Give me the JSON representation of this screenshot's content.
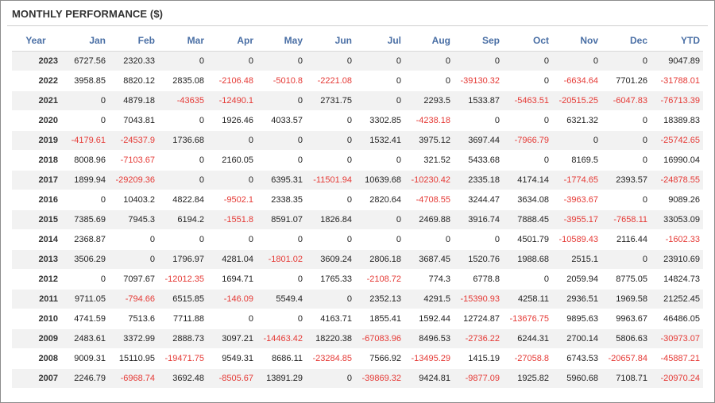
{
  "title": "MONTHLY PERFORMANCE ($)",
  "colors": {
    "header_text": "#4a6fa5",
    "negative": "#e53935",
    "row_alt": "#f2f2f2"
  },
  "table": {
    "headers": [
      "Year",
      "Jan",
      "Feb",
      "Mar",
      "Apr",
      "May",
      "Jun",
      "Jul",
      "Aug",
      "Sep",
      "Oct",
      "Nov",
      "Dec",
      "YTD"
    ],
    "rows": [
      [
        "2023",
        "6727.56",
        "2320.33",
        "0",
        "0",
        "0",
        "0",
        "0",
        "0",
        "0",
        "0",
        "0",
        "0",
        "9047.89"
      ],
      [
        "2022",
        "3958.85",
        "8820.12",
        "2835.08",
        "-2106.48",
        "-5010.8",
        "-2221.08",
        "0",
        "0",
        "-39130.32",
        "0",
        "-6634.64",
        "7701.26",
        "-31788.01"
      ],
      [
        "2021",
        "0",
        "4879.18",
        "-43635",
        "-12490.1",
        "0",
        "2731.75",
        "0",
        "2293.5",
        "1533.87",
        "-5463.51",
        "-20515.25",
        "-6047.83",
        "-76713.39"
      ],
      [
        "2020",
        "0",
        "7043.81",
        "0",
        "1926.46",
        "4033.57",
        "0",
        "3302.85",
        "-4238.18",
        "0",
        "0",
        "6321.32",
        "0",
        "18389.83"
      ],
      [
        "2019",
        "-4179.61",
        "-24537.9",
        "1736.68",
        "0",
        "0",
        "0",
        "1532.41",
        "3975.12",
        "3697.44",
        "-7966.79",
        "0",
        "0",
        "-25742.65"
      ],
      [
        "2018",
        "8008.96",
        "-7103.67",
        "0",
        "2160.05",
        "0",
        "0",
        "0",
        "321.52",
        "5433.68",
        "0",
        "8169.5",
        "0",
        "16990.04"
      ],
      [
        "2017",
        "1899.94",
        "-29209.36",
        "0",
        "0",
        "6395.31",
        "-11501.94",
        "10639.68",
        "-10230.42",
        "2335.18",
        "4174.14",
        "-1774.65",
        "2393.57",
        "-24878.55"
      ],
      [
        "2016",
        "0",
        "10403.2",
        "4822.84",
        "-9502.1",
        "2338.35",
        "0",
        "2820.64",
        "-4708.55",
        "3244.47",
        "3634.08",
        "-3963.67",
        "0",
        "9089.26"
      ],
      [
        "2015",
        "7385.69",
        "7945.3",
        "6194.2",
        "-1551.8",
        "8591.07",
        "1826.84",
        "0",
        "2469.88",
        "3916.74",
        "7888.45",
        "-3955.17",
        "-7658.11",
        "33053.09"
      ],
      [
        "2014",
        "2368.87",
        "0",
        "0",
        "0",
        "0",
        "0",
        "0",
        "0",
        "0",
        "4501.79",
        "-10589.43",
        "2116.44",
        "-1602.33"
      ],
      [
        "2013",
        "3506.29",
        "0",
        "1796.97",
        "4281.04",
        "-1801.02",
        "3609.24",
        "2806.18",
        "3687.45",
        "1520.76",
        "1988.68",
        "2515.1",
        "0",
        "23910.69"
      ],
      [
        "2012",
        "0",
        "7097.67",
        "-12012.35",
        "1694.71",
        "0",
        "1765.33",
        "-2108.72",
        "774.3",
        "6778.8",
        "0",
        "2059.94",
        "8775.05",
        "14824.73"
      ],
      [
        "2011",
        "9711.05",
        "-794.66",
        "6515.85",
        "-146.09",
        "5549.4",
        "0",
        "2352.13",
        "4291.5",
        "-15390.93",
        "4258.11",
        "2936.51",
        "1969.58",
        "21252.45"
      ],
      [
        "2010",
        "4741.59",
        "7513.6",
        "7711.88",
        "0",
        "0",
        "4163.71",
        "1855.41",
        "1592.44",
        "12724.87",
        "-13676.75",
        "9895.63",
        "9963.67",
        "46486.05"
      ],
      [
        "2009",
        "2483.61",
        "3372.99",
        "2888.73",
        "3097.21",
        "-14463.42",
        "18220.38",
        "-67083.96",
        "8496.53",
        "-2736.22",
        "6244.31",
        "2700.14",
        "5806.63",
        "-30973.07"
      ],
      [
        "2008",
        "9009.31",
        "15110.95",
        "-19471.75",
        "9549.31",
        "8686.11",
        "-23284.85",
        "7566.92",
        "-13495.29",
        "1415.19",
        "-27058.8",
        "6743.53",
        "-20657.84",
        "-45887.21"
      ],
      [
        "2007",
        "2246.79",
        "-6968.74",
        "3692.48",
        "-8505.67",
        "13891.29",
        "0",
        "-39869.32",
        "9424.81",
        "-9877.09",
        "1925.82",
        "5960.68",
        "7108.71",
        "-20970.24"
      ]
    ]
  }
}
